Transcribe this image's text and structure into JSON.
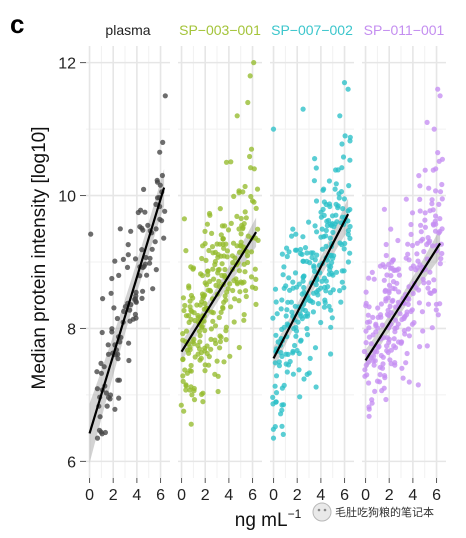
{
  "panel_label": "c",
  "watermark": {
    "text": "毛肚吃狗粮的笔记本"
  },
  "chart_data": {
    "type": "scatter",
    "ylabel": "Median protein intensity [log10]",
    "xlabel_base": "ng mL",
    "xlabel_sup": "−1",
    "xlim": [
      -0.3,
      6.8
    ],
    "ylim": [
      5.75,
      12.25
    ],
    "xticks": [
      0,
      2,
      4,
      6
    ],
    "yticks": [
      6,
      8,
      10,
      12
    ],
    "grid": true,
    "facets": [
      {
        "name": "plasma",
        "color": "#444444",
        "label_color": "#222222",
        "count": 110,
        "trend": {
          "x": [
            0,
            6.3
          ],
          "y": [
            6.42,
            10.12
          ]
        },
        "band": [
          0.45,
          0.14,
          0.28
        ],
        "spread": 0.72,
        "x_range": [
          0.5,
          6.4
        ],
        "outliers": [
          [
            0.1,
            9.42
          ],
          [
            1.1,
            8.45
          ],
          [
            2.6,
            9.5
          ],
          [
            6.4,
            11.5
          ]
        ]
      },
      {
        "name": "SP−003−001",
        "color": "#95bb2d",
        "label_color": "#a4c43a",
        "count": 270,
        "trend": {
          "x": [
            0,
            6.3
          ],
          "y": [
            7.65,
            9.45
          ]
        },
        "band": [
          0.15,
          0.06,
          0.22
        ],
        "spread": 0.9,
        "x_range": [
          -0.1,
          6.5
        ],
        "outliers": [
          [
            5.8,
            11.8
          ],
          [
            6.1,
            12.0
          ],
          [
            5.6,
            11.4
          ],
          [
            4.7,
            11.2
          ],
          [
            3.8,
            10.5
          ]
        ]
      },
      {
        "name": "SP−007−002",
        "color": "#2cc0c8",
        "label_color": "#3cc6cc",
        "count": 270,
        "trend": {
          "x": [
            0,
            6.3
          ],
          "y": [
            7.55,
            9.72
          ]
        },
        "band": [
          0.17,
          0.06,
          0.24
        ],
        "spread": 0.95,
        "x_range": [
          -0.1,
          6.5
        ],
        "outliers": [
          [
            0.0,
            11.0
          ],
          [
            6.0,
            11.7
          ],
          [
            6.3,
            11.6
          ],
          [
            5.6,
            11.2
          ],
          [
            2.5,
            11.3
          ]
        ]
      },
      {
        "name": "SP−011−001",
        "color": "#c58ef2",
        "label_color": "#c48ef0",
        "count": 260,
        "trend": {
          "x": [
            0,
            6.3
          ],
          "y": [
            7.52,
            9.28
          ]
        },
        "band": [
          0.16,
          0.06,
          0.22
        ],
        "spread": 0.9,
        "x_range": [
          -0.1,
          6.5
        ],
        "outliers": [
          [
            6.1,
            11.6
          ],
          [
            6.3,
            11.5
          ],
          [
            5.2,
            11.1
          ],
          [
            4.5,
            10.3
          ],
          [
            5.8,
            11.0
          ]
        ]
      }
    ]
  }
}
